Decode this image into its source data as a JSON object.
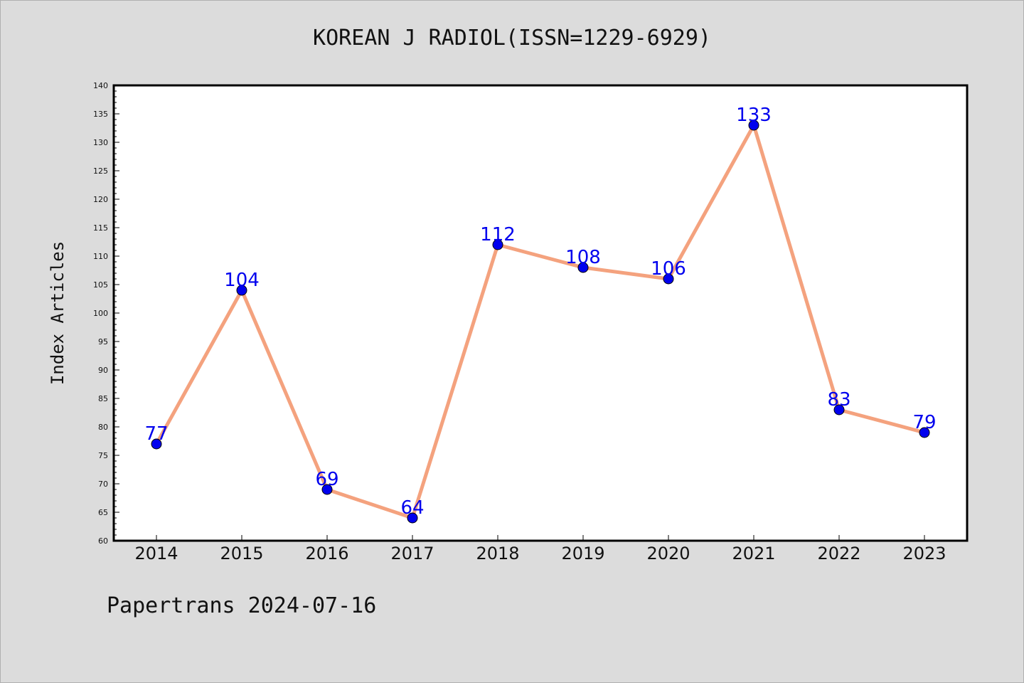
{
  "chart_data": {
    "type": "line",
    "title": "KOREAN J RADIOL(ISSN=1229-6929)",
    "xlabel": "",
    "ylabel": "Index Articles",
    "categories": [
      "2014",
      "2015",
      "2016",
      "2017",
      "2018",
      "2019",
      "2020",
      "2021",
      "2022",
      "2023"
    ],
    "series": [
      {
        "values": [
          77,
          104,
          69,
          64,
          112,
          108,
          106,
          133,
          83,
          79
        ],
        "line_color": "#f4a27e",
        "marker_color": "#0000ee"
      }
    ],
    "data_labels": [
      "77",
      "104",
      "69",
      "64",
      "112",
      "108",
      "106",
      "133",
      "83",
      "79"
    ],
    "ylim": [
      60,
      140
    ],
    "yticks": [
      60,
      65,
      70,
      75,
      80,
      85,
      90,
      95,
      100,
      105,
      110,
      115,
      120,
      125,
      130,
      135,
      140
    ],
    "grid": false,
    "legend": "none"
  },
  "footer": "Papertrans 2024-07-16"
}
